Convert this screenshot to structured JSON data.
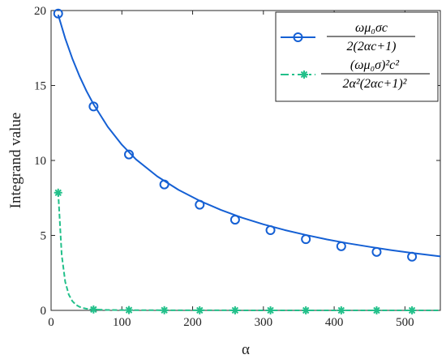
{
  "chart_data": {
    "type": "line",
    "xlabel": "α",
    "ylabel": "Integrand value",
    "xlim": [
      0,
      550
    ],
    "ylim": [
      0,
      20
    ],
    "xticks": [
      0,
      100,
      200,
      300,
      400,
      500
    ],
    "yticks": [
      0,
      5,
      10,
      15,
      20
    ],
    "grid": false,
    "legend_position": "top-right",
    "series": [
      {
        "legend": {
          "numerator": "ωμ₀σc",
          "denominator": "2(2αc+1)"
        },
        "color": "#1560d4",
        "line_style": "solid",
        "marker": "circle",
        "curve": {
          "alpha": [
            10,
            20,
            30,
            40,
            50,
            60,
            80,
            100,
            120,
            150,
            180,
            210,
            240,
            270,
            300,
            330,
            360,
            390,
            420,
            450,
            480,
            510,
            550
          ],
          "value": [
            19.72,
            18.14,
            16.8,
            15.64,
            14.63,
            13.75,
            12.25,
            11.05,
            10.07,
            8.94,
            8.04,
            7.31,
            6.7,
            6.18,
            5.74,
            5.36,
            5.03,
            4.73,
            4.47,
            4.24,
            4.02,
            3.83,
            3.6
          ]
        },
        "markers": {
          "alpha": [
            10,
            60,
            110,
            160,
            210,
            260,
            310,
            360,
            410,
            460,
            510
          ],
          "value": [
            19.8,
            13.6,
            10.4,
            8.4,
            7.05,
            6.05,
            5.35,
            4.75,
            4.28,
            3.9,
            3.58
          ]
        }
      },
      {
        "legend": {
          "numerator": "(ωμ₀σ)²c²",
          "denominator": "2α²(2αc+1)²"
        },
        "color": "#22c08a",
        "line_style": "dashed",
        "marker": "asterisk",
        "curve": {
          "alpha": [
            10,
            15,
            20,
            25,
            30,
            35,
            40,
            45,
            50,
            55,
            60,
            80,
            100,
            150,
            200,
            300,
            400,
            500,
            550
          ],
          "value": [
            7.9,
            3.7,
            1.9,
            1.05,
            0.62,
            0.38,
            0.24,
            0.16,
            0.11,
            0.08,
            0.06,
            0.03,
            0.02,
            0.01,
            0.005,
            0.002,
            0.001,
            0.0005,
            0.0003
          ]
        },
        "markers": {
          "alpha": [
            10,
            60,
            110,
            160,
            210,
            260,
            310,
            360,
            410,
            460,
            510
          ],
          "value": [
            7.85,
            0.06,
            0.02,
            0.01,
            0.005,
            0.003,
            0.002,
            0.001,
            0.001,
            0.001,
            0.0005
          ]
        }
      }
    ]
  }
}
